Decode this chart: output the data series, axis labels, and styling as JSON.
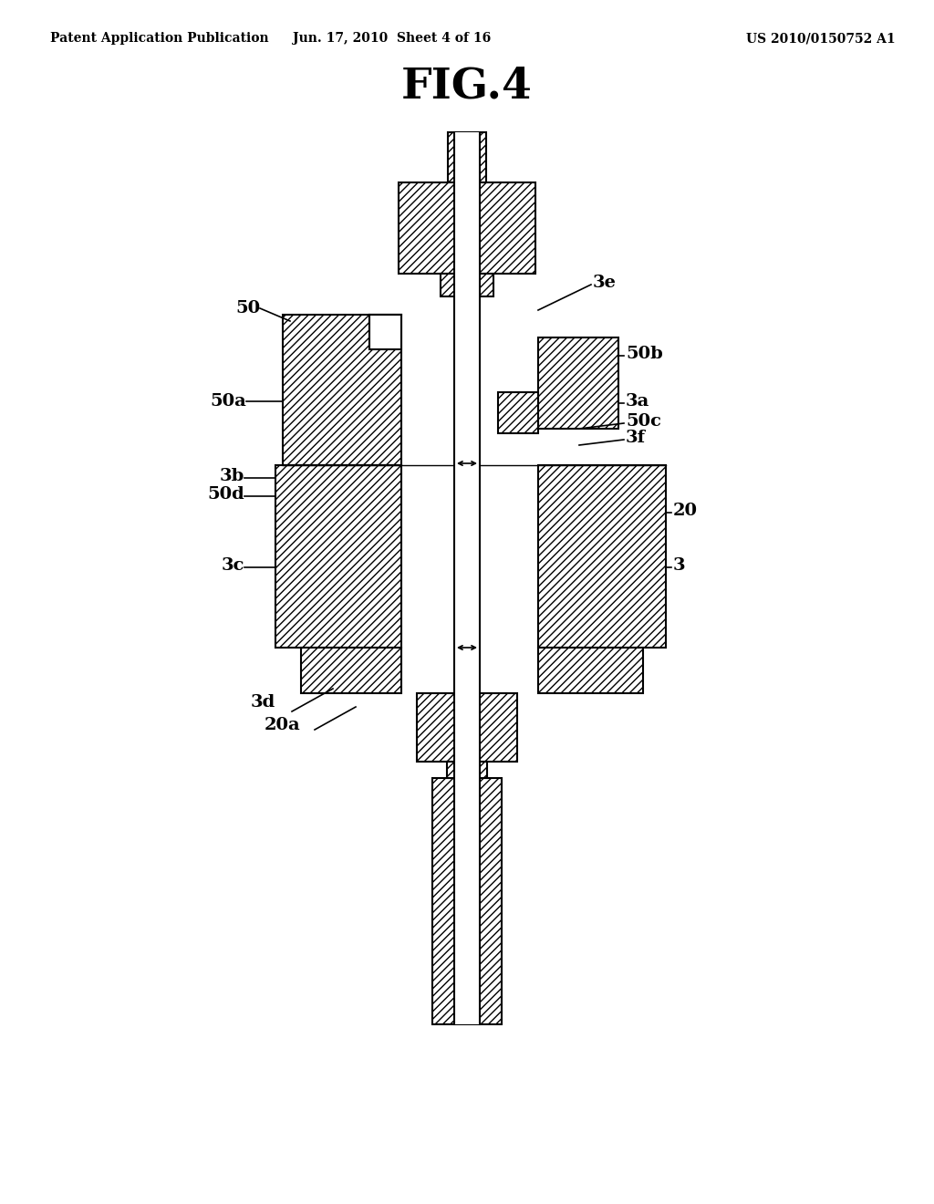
{
  "title": "FIG.4",
  "header_left": "Patent Application Publication",
  "header_center": "Jun. 17, 2010  Sheet 4 of 16",
  "header_right": "US 2010/0150752 A1",
  "bg_color": "#ffffff"
}
